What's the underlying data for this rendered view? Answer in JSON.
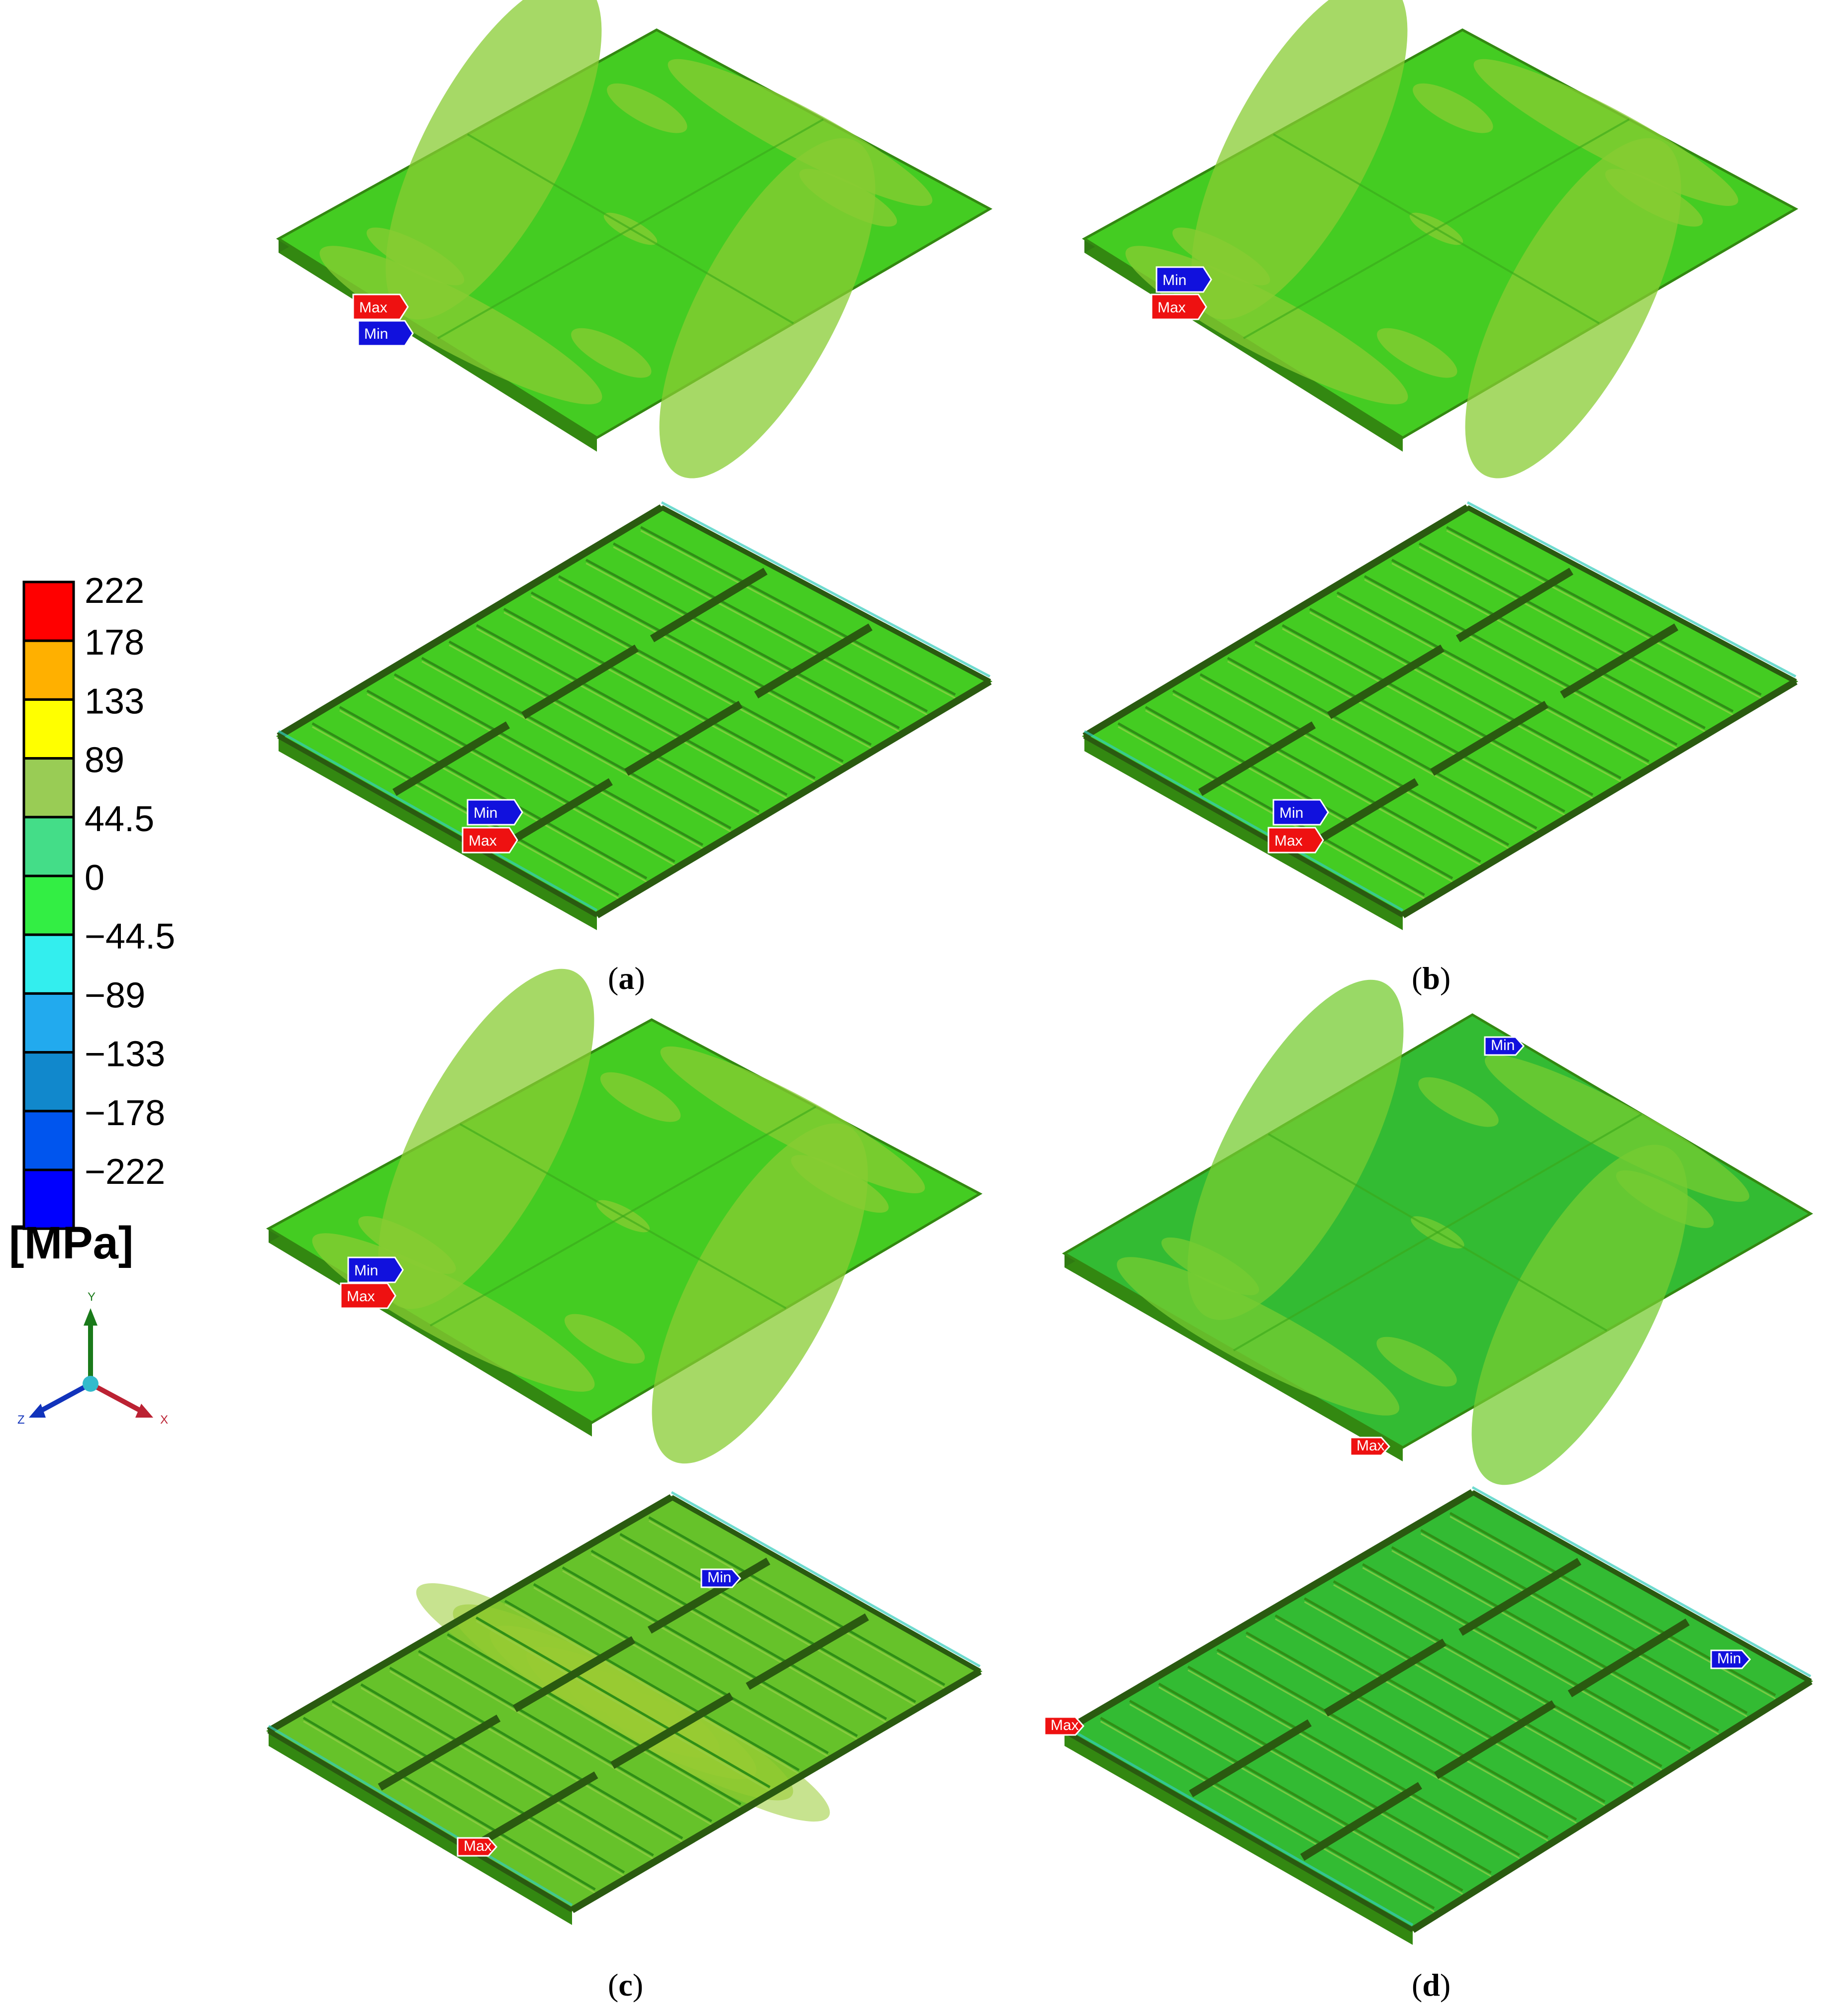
{
  "legend": {
    "unit": "[MPa]",
    "levels": [
      {
        "label": "222",
        "color": "#ff0000"
      },
      {
        "label": "178",
        "color": "#ffb000"
      },
      {
        "label": "133",
        "color": "#ffff00"
      },
      {
        "label": "89",
        "color": "#99cc55"
      },
      {
        "label": "44.5",
        "color": "#44dd88"
      },
      {
        "label": "0",
        "color": "#33ee44"
      },
      {
        "label": "−44.5",
        "color": "#33eeee"
      },
      {
        "label": "−89",
        "color": "#22aaee"
      },
      {
        "label": "−133",
        "color": "#1188cc"
      },
      {
        "label": "−178",
        "color": "#0055ee"
      },
      {
        "label": "−222",
        "color": "#0000ff"
      }
    ]
  },
  "axes": {
    "y": "Y",
    "z": "Z",
    "x": "X"
  },
  "tags": {
    "max": "Max",
    "min": "Min"
  },
  "captions": {
    "a": {
      "open": "(",
      "letter": "a",
      "close": ")"
    },
    "b": {
      "open": "(",
      "letter": "b",
      "close": ")"
    },
    "c": {
      "open": "(",
      "letter": "c",
      "close": ")"
    },
    "d": {
      "open": "(",
      "letter": "d",
      "close": ")"
    }
  },
  "colors": {
    "plate_main": "#44cc22",
    "plate_light": "#88cc33",
    "plate_dark": "#338811",
    "beam": "#2a5a10",
    "edge": "#33ccbb",
    "max_tag": "#ee1111",
    "min_tag": "#1111dd"
  }
}
